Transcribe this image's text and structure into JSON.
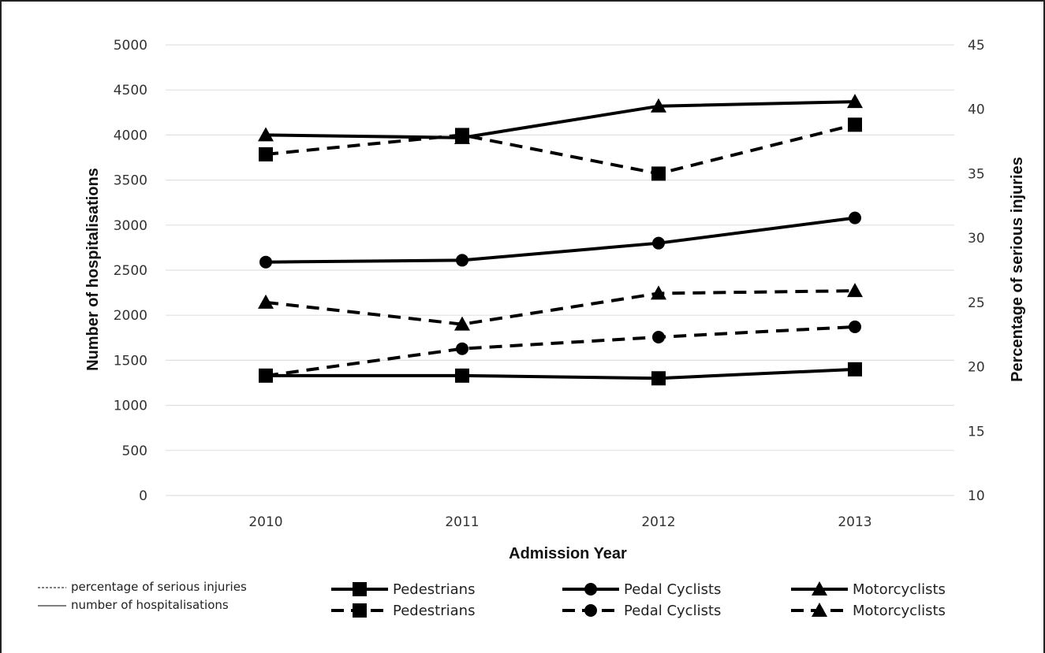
{
  "chart_data": {
    "type": "line",
    "title": "",
    "x": [
      "2010",
      "2011",
      "2012",
      "2013"
    ],
    "xlabel": "Admission Year",
    "ylabel_left": "Number of hospitalisations",
    "ylabel_right": "Percentage of serious injuries",
    "y_left_range": [
      0,
      5000
    ],
    "y_left_ticks": [
      "0",
      "500",
      "1000",
      "1500",
      "2000",
      "2500",
      "3000",
      "3500",
      "4000",
      "4500",
      "5000"
    ],
    "y_right_range": [
      10,
      45
    ],
    "y_right_ticks": [
      "10",
      "15",
      "20",
      "25",
      "30",
      "35",
      "40",
      "45"
    ],
    "grid": true,
    "legend_position": "bottom",
    "series": [
      {
        "name": "Pedestrians",
        "axis": "left",
        "style": "solid",
        "marker": "square",
        "values": [
          1330,
          1330,
          1300,
          1400
        ]
      },
      {
        "name": "Pedal Cyclists",
        "axis": "left",
        "style": "solid",
        "marker": "circle",
        "values": [
          2590,
          2610,
          2800,
          3080
        ]
      },
      {
        "name": "Motorcyclists",
        "axis": "left",
        "style": "solid",
        "marker": "triangle",
        "values": [
          4000,
          3970,
          4320,
          4370
        ]
      },
      {
        "name": "Pedestrians",
        "axis": "right",
        "style": "dashed",
        "marker": "square",
        "values": [
          36.5,
          38,
          35,
          38.8
        ]
      },
      {
        "name": "Pedal Cyclists",
        "axis": "right",
        "style": "dashed",
        "marker": "circle",
        "values": [
          19.3,
          21.4,
          22.3,
          23.1
        ]
      },
      {
        "name": "Motorcyclists",
        "axis": "right",
        "style": "dashed",
        "marker": "triangle",
        "values": [
          25,
          23.3,
          25.7,
          25.9
        ]
      }
    ],
    "notes": [
      {
        "style": "dashed",
        "label": "percentage of serious injuries"
      },
      {
        "style": "solid",
        "label": "number of hospitalisations"
      }
    ]
  }
}
